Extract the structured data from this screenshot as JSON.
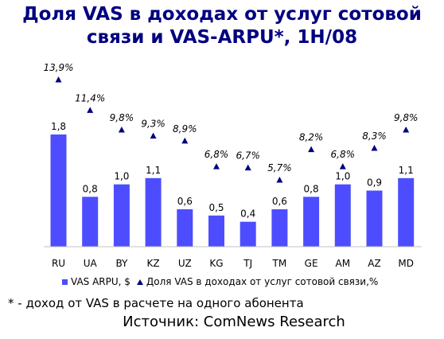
{
  "title_line1": "Доля VAS в доходах от услуг сотовой",
  "title_line2": "связи и VAS-ARPU*, 1H/08",
  "footnote": "* - доход от VAS в расчете на одного абонента",
  "source": "Источник: ComNews Research",
  "colors": {
    "title": "#000080",
    "bar": "#4d4dff",
    "marker": "#000080"
  },
  "chart_data": {
    "type": "bar",
    "title": "Доля VAS в доходах от услуг сотовой связи и VAS-ARPU*, 1H/08",
    "categories": [
      "RU",
      "UA",
      "BY",
      "KZ",
      "UZ",
      "KG",
      "TJ",
      "TM",
      "GE",
      "AM",
      "AZ",
      "MD"
    ],
    "series": [
      {
        "name": "VAS ARPU, $",
        "type": "bar",
        "values": [
          1.8,
          0.8,
          1.0,
          1.1,
          0.6,
          0.5,
          0.4,
          0.6,
          0.8,
          1.0,
          0.9,
          1.1
        ],
        "labels": [
          "1,8",
          "0,8",
          "1,0",
          "1,1",
          "0,6",
          "0,5",
          "0,4",
          "0,6",
          "0,8",
          "1,0",
          "0,9",
          "1,1"
        ]
      },
      {
        "name": "Доля VAS в доходах от услуг сотовой связи,%",
        "type": "scatter",
        "marker": "triangle",
        "values": [
          13.9,
          11.4,
          9.8,
          9.3,
          8.9,
          6.8,
          6.7,
          5.7,
          8.2,
          6.8,
          8.3,
          9.8
        ],
        "labels": [
          "13,9%",
          "11,4%",
          "9,8%",
          "9,3%",
          "8,9%",
          "6,8%",
          "6,7%",
          "5,7%",
          "8,2%",
          "6,8%",
          "8,3%",
          "9,8%"
        ]
      }
    ],
    "legend_position": "bottom",
    "grid": false
  }
}
